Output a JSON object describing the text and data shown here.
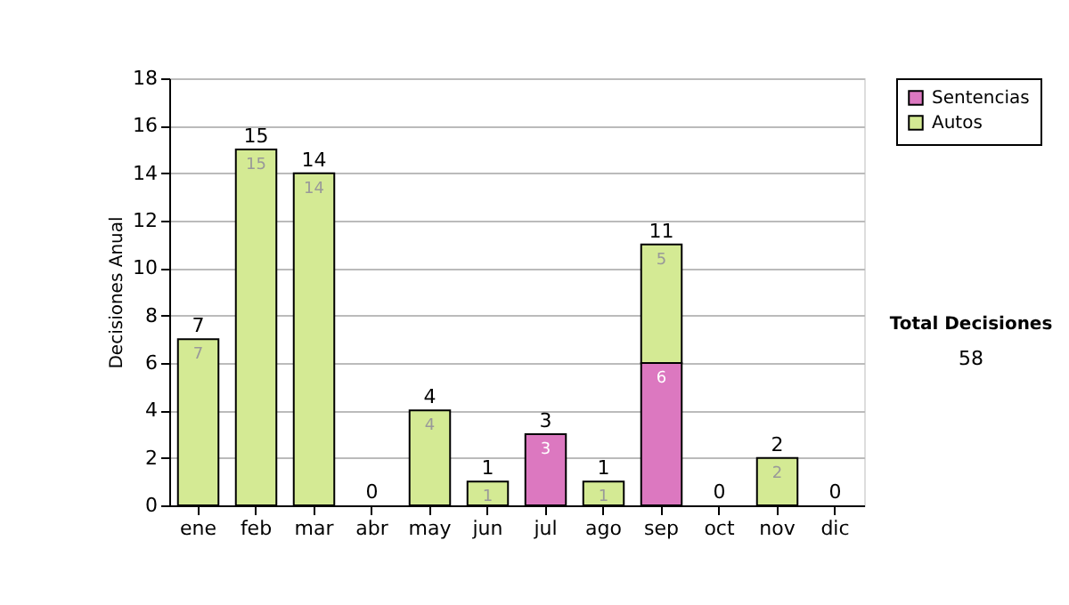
{
  "chart_data": {
    "type": "bar",
    "stacked": true,
    "ylabel": "Decisiones Anual",
    "categories": [
      "ene",
      "feb",
      "mar",
      "abr",
      "may",
      "jun",
      "jul",
      "ago",
      "sep",
      "oct",
      "nov",
      "dic"
    ],
    "series": [
      {
        "name": "Sentencias",
        "color": "#dc78c0",
        "values": [
          0,
          0,
          0,
          0,
          0,
          0,
          3,
          0,
          6,
          0,
          0,
          0
        ],
        "value_labels": [
          null,
          null,
          null,
          null,
          null,
          null,
          "3",
          null,
          "6",
          null,
          null,
          null
        ]
      },
      {
        "name": "Autos",
        "color": "#d4ea94",
        "values": [
          7,
          15,
          14,
          0,
          4,
          1,
          0,
          1,
          5,
          0,
          2,
          0
        ],
        "value_labels": [
          "7",
          "15",
          "14",
          null,
          "4",
          "1",
          null,
          "1",
          "5",
          null,
          "2",
          null
        ]
      }
    ],
    "totals": [
      "7",
      "15",
      "14",
      "0",
      "4",
      "1",
      "3",
      "1",
      "11",
      "0",
      "2",
      "0"
    ],
    "ylim": [
      0,
      18
    ],
    "yticks": [
      0,
      2,
      4,
      6,
      8,
      10,
      12,
      14,
      16,
      18
    ],
    "grid": "y",
    "legend": "right",
    "annotations": [
      "Total Decisiones",
      "58"
    ]
  }
}
